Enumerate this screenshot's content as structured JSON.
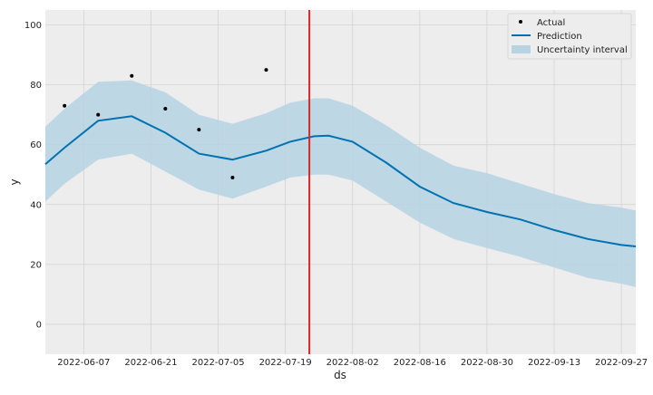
{
  "chart_data": {
    "type": "line",
    "xlabel": "ds",
    "ylabel": "y",
    "xlim": [
      "2022-05-30",
      "2022-09-30"
    ],
    "ylim": [
      -10,
      105
    ],
    "x_ticks": [
      "2022-06-07",
      "2022-06-21",
      "2022-07-05",
      "2022-07-19",
      "2022-08-02",
      "2022-08-16",
      "2022-08-30",
      "2022-09-13",
      "2022-09-27"
    ],
    "y_ticks": [
      0,
      20,
      40,
      60,
      80,
      100
    ],
    "grid": true,
    "legend": {
      "position": "top-right",
      "entries": [
        "Actual",
        "Prediction",
        "Uncertainty interval"
      ]
    },
    "changepoint": {
      "x": "2022-07-24",
      "color": "#d62728"
    },
    "colors": {
      "actual": "#000000",
      "prediction": "#0072b2",
      "interval": "#b8d4e3",
      "plot_background": "#ededed",
      "grid": "#d3d3d3"
    },
    "series": [
      {
        "name": "Actual",
        "kind": "scatter",
        "x": [
          "2022-06-03",
          "2022-06-10",
          "2022-06-17",
          "2022-06-24",
          "2022-07-01",
          "2022-07-08",
          "2022-07-15"
        ],
        "y": [
          73,
          70,
          83,
          72,
          65,
          49,
          85
        ]
      },
      {
        "name": "Prediction",
        "kind": "line",
        "x": [
          "2022-05-30",
          "2022-06-03",
          "2022-06-10",
          "2022-06-17",
          "2022-06-24",
          "2022-07-01",
          "2022-07-08",
          "2022-07-15",
          "2022-07-20",
          "2022-07-25",
          "2022-07-28",
          "2022-08-02",
          "2022-08-09",
          "2022-08-16",
          "2022-08-23",
          "2022-08-30",
          "2022-09-06",
          "2022-09-13",
          "2022-09-20",
          "2022-09-27",
          "2022-09-30"
        ],
        "y": [
          53.5,
          59,
          68,
          69.5,
          64,
          57,
          55,
          58,
          61,
          62.8,
          63,
          61,
          54,
          46,
          40.5,
          37.5,
          35,
          31.5,
          28.5,
          26.5,
          26
        ]
      },
      {
        "name": "Uncertainty interval",
        "kind": "band",
        "x": [
          "2022-05-30",
          "2022-06-03",
          "2022-06-10",
          "2022-06-17",
          "2022-06-24",
          "2022-07-01",
          "2022-07-08",
          "2022-07-15",
          "2022-07-20",
          "2022-07-25",
          "2022-07-28",
          "2022-08-02",
          "2022-08-09",
          "2022-08-16",
          "2022-08-23",
          "2022-08-30",
          "2022-09-06",
          "2022-09-13",
          "2022-09-20",
          "2022-09-27",
          "2022-09-30"
        ],
        "lower": [
          41,
          47,
          55,
          57,
          51,
          45,
          42,
          46,
          49,
          50,
          50,
          48,
          41,
          34,
          28.5,
          25.5,
          22.5,
          19,
          15.5,
          13.5,
          12.5
        ],
        "upper": [
          66,
          72,
          81,
          81.5,
          77.5,
          70,
          67,
          70.5,
          74,
          75.5,
          75.5,
          73,
          66.5,
          59,
          53,
          50.5,
          47,
          43.5,
          40.5,
          39,
          38
        ]
      }
    ]
  }
}
